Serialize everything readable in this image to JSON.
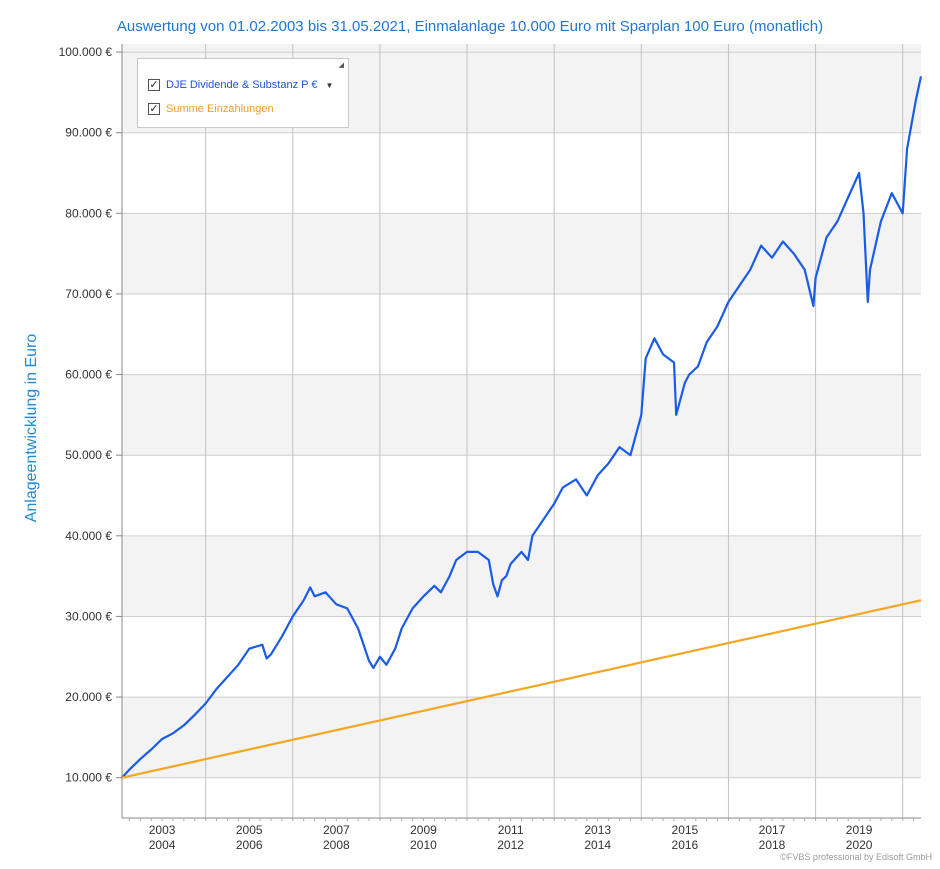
{
  "chart_data": {
    "type": "line",
    "title": "Auswertung von 01.02.2003 bis 31.05.2021, Einmalanlage 10.000 Euro mit Sparplan 100 Euro (monatlich)",
    "xlabel": "",
    "ylabel": "Anlageentwicklung  in Euro",
    "xlim": [
      2003.08,
      2021.42
    ],
    "ylim": [
      5000,
      101000
    ],
    "y_ticks": [
      10000,
      20000,
      30000,
      40000,
      50000,
      60000,
      70000,
      80000,
      90000,
      100000
    ],
    "y_tick_labels": [
      "10.000 €",
      "20.000 €",
      "30.000 €",
      "40.000 €",
      "50.000 €",
      "60.000 €",
      "70.000 €",
      "80.000 €",
      "90.000 €",
      "100.000 €"
    ],
    "x_tick_labels": [
      {
        "top": "2003",
        "bottom": "2004"
      },
      {
        "top": "2005",
        "bottom": "2006"
      },
      {
        "top": "2007",
        "bottom": "2008"
      },
      {
        "top": "2009",
        "bottom": "2010"
      },
      {
        "top": "2011",
        "bottom": "2012"
      },
      {
        "top": "2013",
        "bottom": "2014"
      },
      {
        "top": "2015",
        "bottom": "2016"
      },
      {
        "top": "2017",
        "bottom": "2018"
      },
      {
        "top": "2019",
        "bottom": "2020"
      }
    ],
    "year_gridlines": [
      2005,
      2007,
      2009,
      2011,
      2013,
      2015,
      2017,
      2019,
      2021
    ],
    "legend_position": "top-left",
    "series": [
      {
        "name": "DJE Dividende & Substanz P €",
        "color": "#1a5ce6",
        "x": [
          2003.08,
          2003.25,
          2003.5,
          2003.75,
          2004.0,
          2004.25,
          2004.5,
          2004.75,
          2005.0,
          2005.25,
          2005.5,
          2005.75,
          2006.0,
          2006.3,
          2006.4,
          2006.5,
          2006.75,
          2007.0,
          2007.25,
          2007.4,
          2007.5,
          2007.75,
          2008.0,
          2008.25,
          2008.5,
          2008.75,
          2008.85,
          2009.0,
          2009.15,
          2009.35,
          2009.5,
          2009.75,
          2010.0,
          2010.25,
          2010.4,
          2010.6,
          2010.75,
          2011.0,
          2011.25,
          2011.5,
          2011.6,
          2011.7,
          2011.8,
          2011.9,
          2012.0,
          2012.25,
          2012.4,
          2012.5,
          2012.75,
          2013.0,
          2013.2,
          2013.5,
          2013.75,
          2014.0,
          2014.25,
          2014.5,
          2014.75,
          2014.85,
          2015.0,
          2015.1,
          2015.3,
          2015.5,
          2015.75,
          2015.8,
          2016.0,
          2016.1,
          2016.3,
          2016.5,
          2016.75,
          2017.0,
          2017.25,
          2017.5,
          2017.75,
          2018.0,
          2018.25,
          2018.5,
          2018.75,
          2018.95,
          2019.0,
          2019.25,
          2019.5,
          2019.75,
          2020.0,
          2020.1,
          2020.2,
          2020.25,
          2020.5,
          2020.75,
          2021.0,
          2021.1,
          2021.3,
          2021.42
        ],
        "y": [
          10000,
          11000,
          12300,
          13500,
          14800,
          15500,
          16500,
          17800,
          19200,
          21000,
          22500,
          24000,
          26000,
          26500,
          24800,
          25300,
          27500,
          30000,
          32000,
          33600,
          32500,
          33000,
          31500,
          31000,
          28500,
          24500,
          23600,
          25000,
          24000,
          26000,
          28500,
          31000,
          32500,
          33800,
          33000,
          35000,
          37000,
          38000,
          38000,
          37000,
          34000,
          32500,
          34500,
          35000,
          36500,
          38000,
          37000,
          40000,
          42000,
          44000,
          46000,
          47000,
          45000,
          47500,
          49000,
          51000,
          50000,
          52000,
          55000,
          62000,
          64500,
          62500,
          61500,
          55000,
          59000,
          60000,
          61000,
          64000,
          66000,
          69000,
          71000,
          73000,
          76000,
          74500,
          76500,
          75000,
          73000,
          68500,
          72000,
          77000,
          79000,
          82000,
          85000,
          80000,
          69000,
          73000,
          79000,
          82500,
          80000,
          88000,
          94000,
          97000
        ]
      },
      {
        "name": "Summe Einzahlungen",
        "color": "#f5a623",
        "x": [
          2003.08,
          2021.42
        ],
        "y": [
          10000,
          32000
        ]
      }
    ]
  },
  "legend": {
    "items": [
      {
        "label": "DJE Dividende & Substanz P €",
        "checked": true
      },
      {
        "label": "Summe Einzahlungen",
        "checked": true
      }
    ]
  },
  "copyright": "©FVBS professional by Edisoft GmbH"
}
